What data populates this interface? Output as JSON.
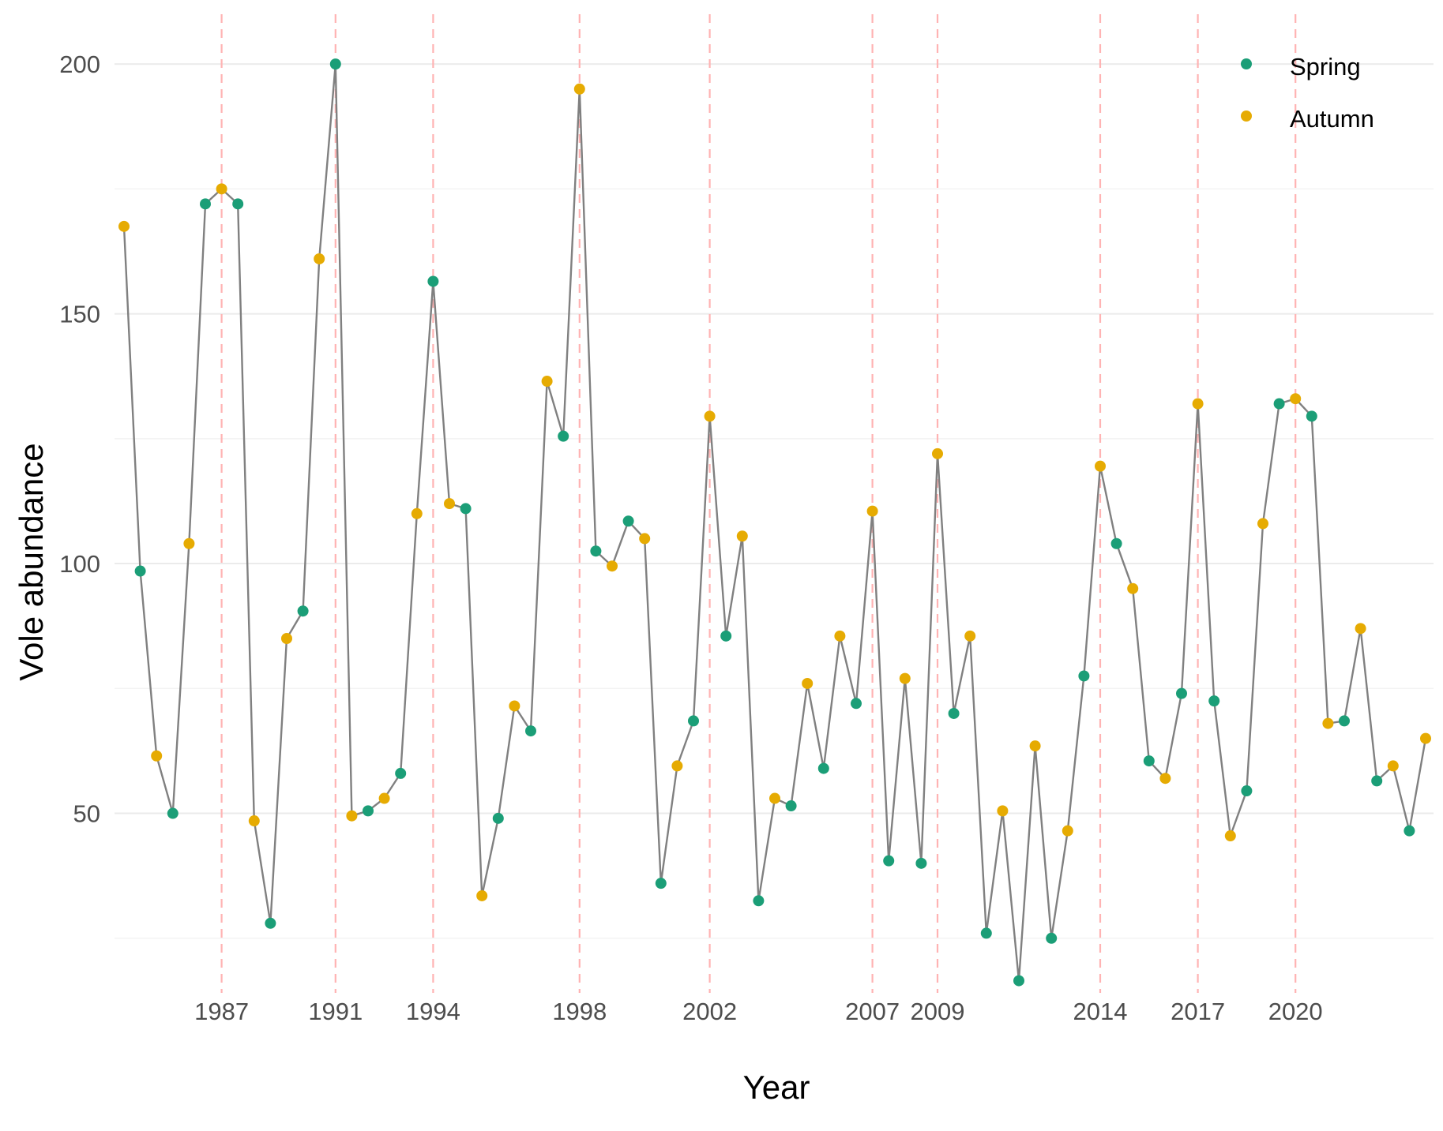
{
  "chart_data": {
    "type": "line",
    "title": "",
    "xlabel": "Year",
    "ylabel": "Vole abundance",
    "ylim": [
      17,
      207
    ],
    "y_ticks": [
      50,
      100,
      150,
      200
    ],
    "grid": true,
    "legend_placement": "top-right",
    "series": [
      {
        "name": "Spring",
        "color": "#1b9e77"
      },
      {
        "name": "Autumn",
        "color": "#e6ab02"
      }
    ],
    "line_color": "#808080",
    "vline_color": "#ffb3b3",
    "sessions": [
      "A",
      "S",
      "A",
      "S",
      "A",
      "S",
      "A",
      "S",
      "A",
      "S",
      "A",
      "S",
      "A",
      "S",
      "A",
      "S",
      "A",
      "S",
      "A",
      "S",
      "A",
      "S",
      "A",
      "S",
      "A",
      "S",
      "A",
      "S",
      "A",
      "S",
      "A",
      "S",
      "A",
      "S",
      "A",
      "S",
      "A",
      "S",
      "A",
      "S",
      "A",
      "S",
      "A",
      "S",
      "A",
      "S",
      "A",
      "S",
      "A",
      "S",
      "A",
      "S",
      "A",
      "S",
      "A",
      "S",
      "A",
      "S",
      "A",
      "S",
      "A",
      "S",
      "A",
      "S",
      "A",
      "S",
      "A",
      "S",
      "A",
      "S",
      "A",
      "S",
      "A",
      "S",
      "A",
      "S",
      "A",
      "S",
      "A",
      "S",
      "A",
      "S",
      "A"
    ],
    "values": [
      167.5,
      98.5,
      61.5,
      50,
      104,
      172,
      175,
      172,
      48.5,
      28,
      85,
      90.5,
      161,
      200,
      49.5,
      50.5,
      53,
      58,
      110,
      156.5,
      112,
      111,
      33.5,
      49,
      71.5,
      66.5,
      136.5,
      125.5,
      195,
      102.5,
      99.5,
      108.5,
      105,
      36,
      59.5,
      68.5,
      129.5,
      85.5,
      105.5,
      32.5,
      53,
      51.5,
      76,
      59,
      85.5,
      72,
      110.5,
      40.5,
      77,
      40,
      122,
      70,
      85.5,
      26,
      50.5,
      16.5,
      63.5,
      25,
      46.5,
      77.5,
      119.5,
      104,
      95,
      60.5,
      57,
      74,
      132,
      72.5,
      45.5,
      54.5,
      108,
      132,
      133,
      129.5,
      68,
      68.5,
      87,
      56.5,
      59.5,
      46.5,
      65
    ],
    "x_tick_labels": [
      {
        "label": "1987",
        "index": 6
      },
      {
        "label": "1991",
        "index": 13
      },
      {
        "label": "1994",
        "index": 19
      },
      {
        "label": "1998",
        "index": 28
      },
      {
        "label": "2002",
        "index": 36
      },
      {
        "label": "2007",
        "index": 46
      },
      {
        "label": "2009",
        "index": 50
      },
      {
        "label": "2014",
        "index": 60
      },
      {
        "label": "2017",
        "index": 66
      },
      {
        "label": "2020",
        "index": 72
      }
    ]
  }
}
